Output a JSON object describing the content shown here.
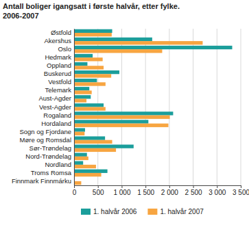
{
  "chart_data": {
    "type": "bar",
    "orientation": "horizontal",
    "title": "Antall boliger igangsatt i første halvår, etter fylke.",
    "subtitle": "2006-2007",
    "categories": [
      "Østfold",
      "Akershus",
      "Oslo",
      "Hedmark",
      "Oppland",
      "Buskerud",
      "Vestfold",
      "Telemark",
      "Aust-Agder",
      "Vest-Agder",
      "Rogaland",
      "Hordaland",
      "Sogn og Fjordane",
      "Møre og Romsdal",
      "Sør-Trøndelag",
      "Nord-Trøndelag",
      "Nordland",
      "Troms Romsa",
      "Finnmark Finnmárku"
    ],
    "series": [
      {
        "name": "1. halvår 2006",
        "color": "#1b9e9b",
        "values": [
          800,
          1640,
          3320,
          390,
          280,
          950,
          480,
          320,
          350,
          620,
          2080,
          1560,
          230,
          650,
          1250,
          270,
          190,
          700,
          0
        ]
      },
      {
        "name": "1. halvår 2007",
        "color": "#f7a541",
        "values": [
          790,
          2700,
          1850,
          600,
          620,
          780,
          660,
          370,
          260,
          660,
          2010,
          1980,
          220,
          800,
          880,
          300,
          460,
          570,
          150
        ]
      }
    ],
    "xlim": [
      0,
      3500
    ],
    "xticks": [
      0,
      500,
      {
        "value": 1000,
        "label": "1 000"
      },
      {
        "value": 1500,
        "label": "1 500"
      },
      {
        "value": 2000,
        "label": "2 000"
      },
      {
        "value": 2500,
        "label": "2 500"
      },
      {
        "value": 3000,
        "label": "3 000"
      },
      {
        "value": 3500,
        "label": "3 500"
      }
    ],
    "grid": true,
    "legend": "bottom"
  }
}
